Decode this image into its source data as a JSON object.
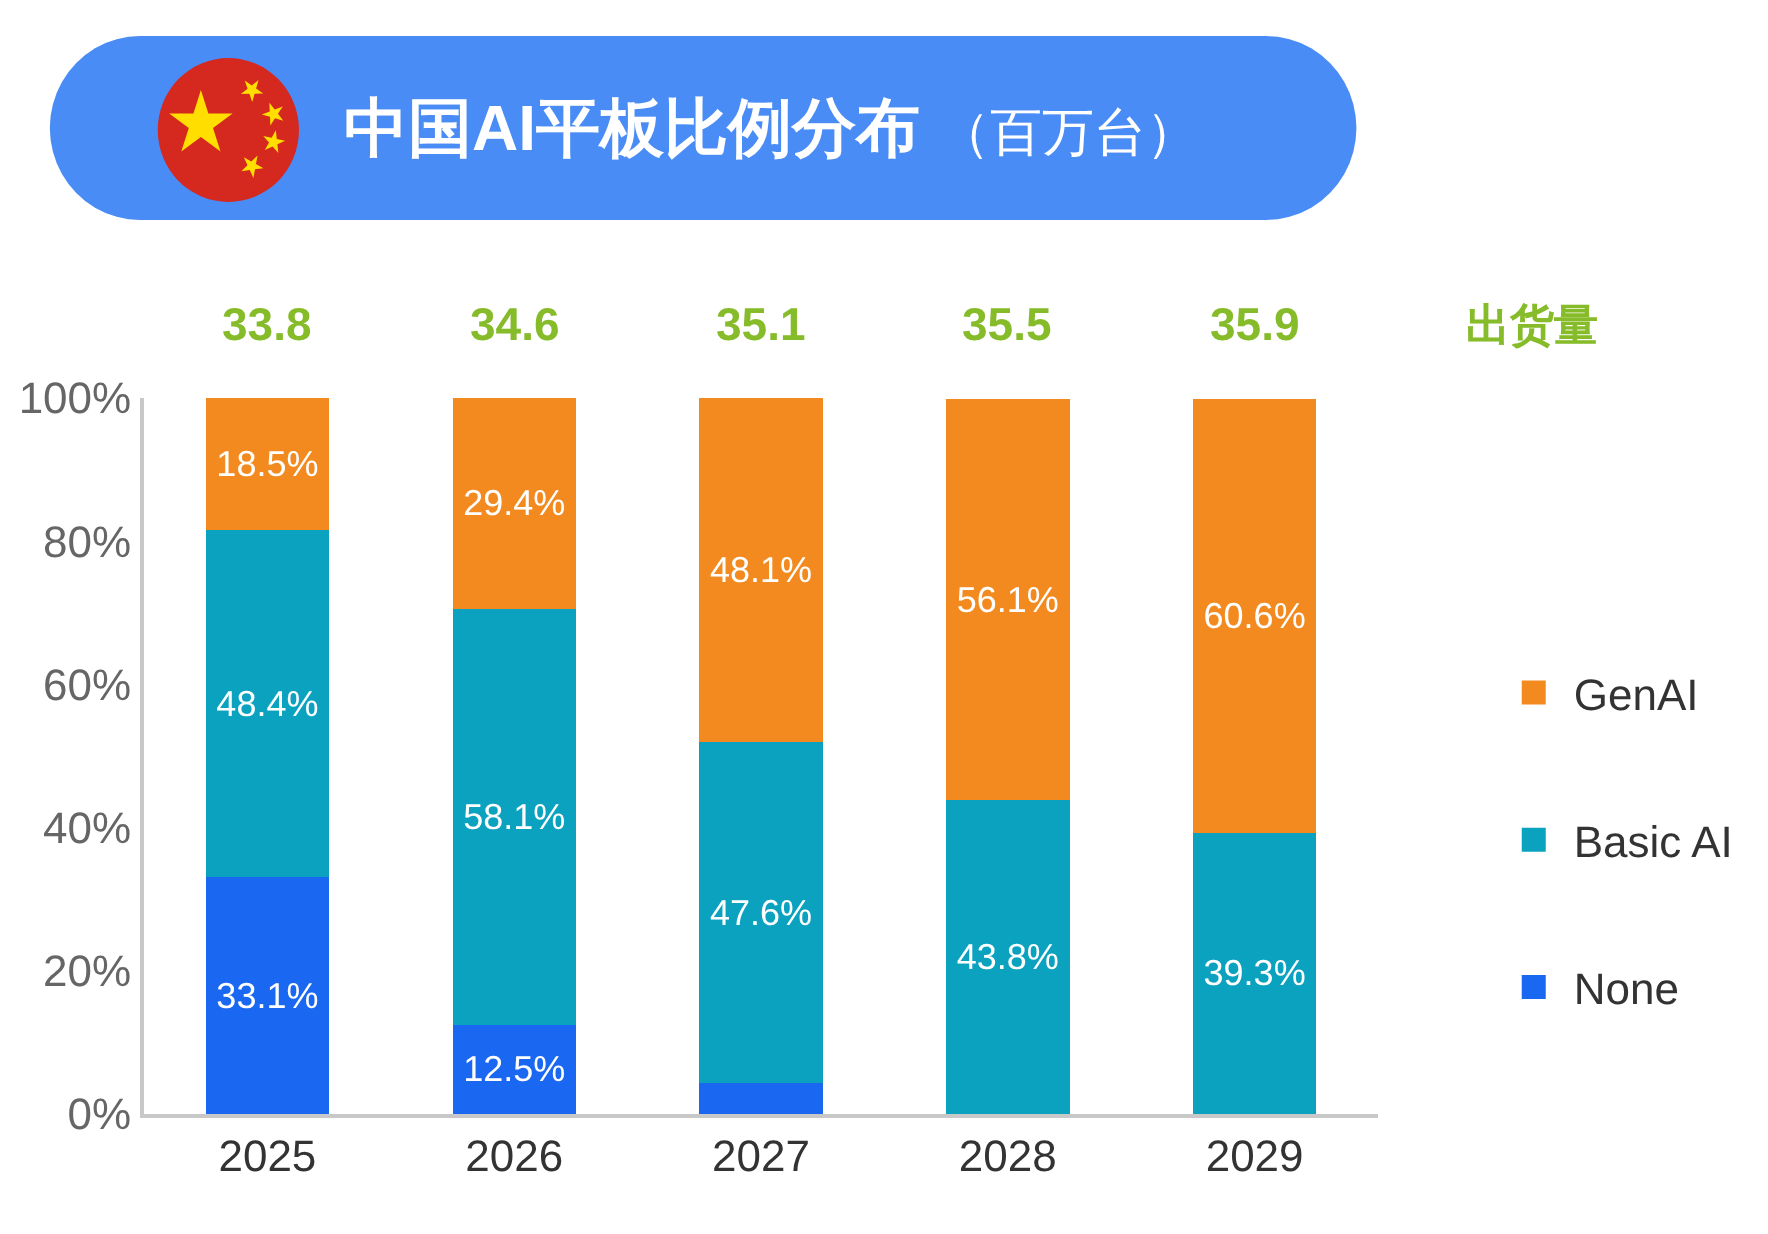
{
  "chart_data": {
    "type": "bar",
    "title": "中国AI平板比例分布",
    "subtitle": "（百万台）",
    "categories": [
      "2025",
      "2026",
      "2027",
      "2028",
      "2029"
    ],
    "stacked": true,
    "series": [
      {
        "name": "None",
        "color": "#1a68f2",
        "values": [
          33.1,
          12.5,
          4.3,
          null,
          null
        ],
        "value_labels": [
          "33.1%",
          "12.5%",
          null,
          null,
          null
        ]
      },
      {
        "name": "Basic AI",
        "color": "#0ba2c0",
        "values": [
          48.4,
          58.1,
          47.6,
          43.8,
          39.3
        ],
        "value_labels": [
          "48.4%",
          "58.1%",
          "47.6%",
          "43.8%",
          "39.3%"
        ]
      },
      {
        "name": "GenAI",
        "color": "#f38a1f",
        "values": [
          18.5,
          29.4,
          48.1,
          56.1,
          60.6
        ],
        "value_labels": [
          "18.5%",
          "29.4%",
          "48.1%",
          "56.1%",
          "60.6%"
        ]
      }
    ],
    "ylim": [
      0,
      100
    ],
    "yticks": [
      {
        "value": 0,
        "label": "0%"
      },
      {
        "value": 20,
        "label": "20%"
      },
      {
        "value": 40,
        "label": "40%"
      },
      {
        "value": 60,
        "label": "60%"
      },
      {
        "value": 80,
        "label": "80%"
      },
      {
        "value": 100,
        "label": "100%"
      }
    ],
    "annotations": [
      {
        "text": "33.8",
        "x": "2025",
        "y": 100
      },
      {
        "text": "34.6",
        "x": "2026",
        "y": 100
      },
      {
        "text": "35.1",
        "x": "2027",
        "y": 100
      },
      {
        "text": "35.5",
        "x": "2028",
        "y": 100
      },
      {
        "text": "35.9",
        "x": "2029",
        "y": 100
      },
      "出货量"
    ],
    "legend": "right"
  }
}
